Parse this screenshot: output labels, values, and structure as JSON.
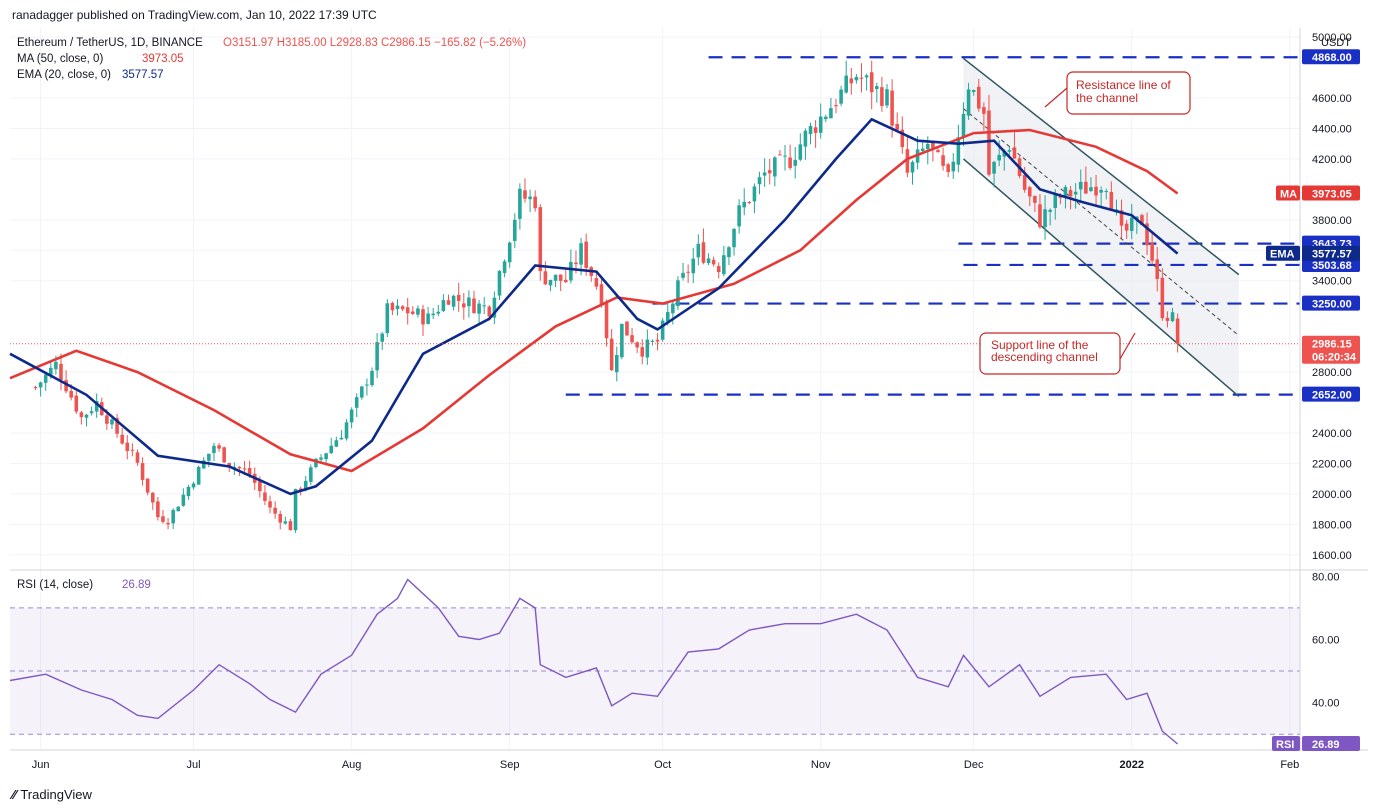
{
  "header": {
    "published": "ranadagger published on TradingView.com, Jan 10, 2022 17:39 UTC"
  },
  "legend": {
    "symbol": "Ethereum / TetherUS, 1D, BINANCE",
    "ohlc": "O3151.97  H3185.00  L2928.83  C2986.15  −165.82 (−5.26%)",
    "ma": "MA (50, close, 0)",
    "ma_value": "3973.05",
    "ema": "EMA (20, close, 0)",
    "ema_value": "3577.57",
    "rsi": "RSI (14, close)",
    "rsi_value": "26.89"
  },
  "colors": {
    "up": "#26a69a",
    "down": "#ef5350",
    "ma": "#e53935",
    "ema": "#0d2a8a",
    "rsi": "#7e57c2",
    "level": "#1a2fc4",
    "channel": "#2e5661",
    "annotation": "#c62828"
  },
  "annotations": {
    "resistance": [
      "Resistance line of",
      "the channel"
    ],
    "support": [
      "Support line of the",
      "descending channel"
    ]
  },
  "footer": {
    "brand": "TradingView"
  },
  "chart_data": {
    "type": "candlestick",
    "currency": "USDT",
    "x_ticks": [
      "Jun",
      "Jul",
      "Aug",
      "Sep",
      "Oct",
      "Nov",
      "Dec",
      "2022",
      "Feb"
    ],
    "x_tick_dates": [
      "2021-06-01",
      "2021-07-01",
      "2021-08-01",
      "2021-09-01",
      "2021-10-01",
      "2021-11-01",
      "2021-12-01",
      "2022-01-01",
      "2022-02-01"
    ],
    "y_ticks": [
      "1600.00",
      "1800.00",
      "2000.00",
      "2200.00",
      "2400.00",
      "2800.00",
      "3400.00",
      "3600.00",
      "3800.00",
      "4200.00",
      "4400.00",
      "4600.00",
      "5000.00"
    ],
    "ylim": [
      1500,
      5060
    ],
    "rsi_ticks": [
      "40.00",
      "60.00",
      "80.00"
    ],
    "rsi_range": [
      25,
      82
    ],
    "rsi_band": [
      30,
      70
    ],
    "horizontal_levels": [
      {
        "label": "4868.00",
        "value": 4868,
        "from": "2021-10-10"
      },
      {
        "label": "3643.73",
        "value": 3643.73,
        "from": "2021-11-28"
      },
      {
        "label": "3503.68",
        "value": 3503.68,
        "from": "2021-11-29"
      },
      {
        "label": "3250.00",
        "value": 3250,
        "from": "2021-09-29"
      },
      {
        "label": "2652.00",
        "value": 2652,
        "from": "2021-09-12"
      }
    ],
    "price_tags": [
      {
        "name": "MA",
        "label": "3973.05",
        "value": 3973.05
      },
      {
        "name": "EMA",
        "label": "3577.57",
        "value": 3577.57
      },
      {
        "name": "close",
        "label": "2986.15",
        "sub": "06:20:34",
        "value": 2986.15
      },
      {
        "name": "RSI",
        "label": "26.89",
        "value": 26.89
      }
    ],
    "channel": {
      "resistance": [
        [
          "2021-11-29",
          4860
        ],
        [
          "2022-01-22",
          3440
        ]
      ],
      "support": [
        [
          "2021-11-29",
          4200
        ],
        [
          "2022-01-22",
          2640
        ]
      ],
      "midline": [
        [
          "2021-11-29",
          4530
        ],
        [
          "2022-01-22",
          3040
        ]
      ]
    },
    "anchors": [
      [
        "2021-05-31",
        2700
      ],
      [
        "2021-06-04",
        2850
      ],
      [
        "2021-06-09",
        2500
      ],
      [
        "2021-06-12",
        2600
      ],
      [
        "2021-06-16",
        2400
      ],
      [
        "2021-06-20",
        2200
      ],
      [
        "2021-06-24",
        1850
      ],
      [
        "2021-06-26",
        1830
      ],
      [
        "2021-07-01",
        2100
      ],
      [
        "2021-07-05",
        2320
      ],
      [
        "2021-07-08",
        2200
      ],
      [
        "2021-07-12",
        2130
      ],
      [
        "2021-07-16",
        1900
      ],
      [
        "2021-07-20",
        1780
      ],
      [
        "2021-07-21",
        2000
      ],
      [
        "2021-07-25",
        2200
      ],
      [
        "2021-07-30",
        2400
      ],
      [
        "2021-08-02",
        2600
      ],
      [
        "2021-08-05",
        2830
      ],
      [
        "2021-08-08",
        3200
      ],
      [
        "2021-08-12",
        3200
      ],
      [
        "2021-08-16",
        3150
      ],
      [
        "2021-08-20",
        3300
      ],
      [
        "2021-08-24",
        3250
      ],
      [
        "2021-08-28",
        3220
      ],
      [
        "2021-09-01",
        3700
      ],
      [
        "2021-09-03",
        3950
      ],
      [
        "2021-09-06",
        3930
      ],
      [
        "2021-09-07",
        3430
      ],
      [
        "2021-09-12",
        3400
      ],
      [
        "2021-09-15",
        3600
      ],
      [
        "2021-09-19",
        3300
      ],
      [
        "2021-09-21",
        2800
      ],
      [
        "2021-09-23",
        3100
      ],
      [
        "2021-09-27",
        2950
      ],
      [
        "2021-09-30",
        3000
      ],
      [
        "2021-10-04",
        3350
      ],
      [
        "2021-10-08",
        3600
      ],
      [
        "2021-10-12",
        3500
      ],
      [
        "2021-10-16",
        3850
      ],
      [
        "2021-10-21",
        4100
      ],
      [
        "2021-10-26",
        4200
      ],
      [
        "2021-10-29",
        4350
      ],
      [
        "2021-11-03",
        4550
      ],
      [
        "2021-11-08",
        4750
      ],
      [
        "2021-11-10",
        4700
      ],
      [
        "2021-11-14",
        4600
      ],
      [
        "2021-11-18",
        4100
      ],
      [
        "2021-11-22",
        4300
      ],
      [
        "2021-11-26",
        4050
      ],
      [
        "2021-11-30",
        4700
      ],
      [
        "2021-12-03",
        4500
      ],
      [
        "2021-12-04",
        4100
      ],
      [
        "2021-12-08",
        4300
      ],
      [
        "2021-12-11",
        4000
      ],
      [
        "2021-12-14",
        3800
      ],
      [
        "2021-12-18",
        3950
      ],
      [
        "2021-12-22",
        4000
      ],
      [
        "2021-12-27",
        4050
      ],
      [
        "2021-12-30",
        3700
      ],
      [
        "2022-01-03",
        3800
      ],
      [
        "2022-01-05",
        3550
      ],
      [
        "2022-01-07",
        3200
      ],
      [
        "2022-01-09",
        3150
      ],
      [
        "2022-01-10",
        2986
      ]
    ],
    "ema20_anchors": [
      [
        "2021-05-26",
        2920
      ],
      [
        "2021-06-10",
        2650
      ],
      [
        "2021-06-24",
        2250
      ],
      [
        "2021-07-08",
        2180
      ],
      [
        "2021-07-20",
        2000
      ],
      [
        "2021-07-25",
        2050
      ],
      [
        "2021-08-05",
        2350
      ],
      [
        "2021-08-15",
        2920
      ],
      [
        "2021-08-28",
        3150
      ],
      [
        "2021-09-06",
        3500
      ],
      [
        "2021-09-18",
        3460
      ],
      [
        "2021-09-26",
        3150
      ],
      [
        "2021-09-30",
        3080
      ],
      [
        "2021-10-12",
        3350
      ],
      [
        "2021-10-25",
        3800
      ],
      [
        "2021-11-04",
        4200
      ],
      [
        "2021-11-11",
        4460
      ],
      [
        "2021-11-20",
        4320
      ],
      [
        "2021-11-28",
        4300
      ],
      [
        "2021-12-05",
        4320
      ],
      [
        "2021-12-14",
        4000
      ],
      [
        "2021-12-22",
        3920
      ],
      [
        "2022-01-01",
        3830
      ],
      [
        "2022-01-10",
        3578
      ]
    ],
    "ma50_anchors": [
      [
        "2021-05-26",
        2760
      ],
      [
        "2021-06-08",
        2940
      ],
      [
        "2021-06-20",
        2800
      ],
      [
        "2021-07-05",
        2550
      ],
      [
        "2021-07-20",
        2260
      ],
      [
        "2021-08-01",
        2150
      ],
      [
        "2021-08-15",
        2430
      ],
      [
        "2021-08-28",
        2780
      ],
      [
        "2021-09-10",
        3100
      ],
      [
        "2021-09-22",
        3290
      ],
      [
        "2021-10-01",
        3250
      ],
      [
        "2021-10-15",
        3380
      ],
      [
        "2021-10-28",
        3600
      ],
      [
        "2021-11-08",
        3930
      ],
      [
        "2021-11-18",
        4200
      ],
      [
        "2021-12-01",
        4370
      ],
      [
        "2021-12-12",
        4390
      ],
      [
        "2021-12-25",
        4280
      ],
      [
        "2022-01-04",
        4120
      ],
      [
        "2022-01-10",
        3973
      ]
    ],
    "rsi_anchors": [
      [
        "2021-05-26",
        47
      ],
      [
        "2021-06-02",
        49
      ],
      [
        "2021-06-09",
        44
      ],
      [
        "2021-06-15",
        41
      ],
      [
        "2021-06-20",
        36
      ],
      [
        "2021-06-24",
        35
      ],
      [
        "2021-07-01",
        44
      ],
      [
        "2021-07-06",
        52
      ],
      [
        "2021-07-12",
        46
      ],
      [
        "2021-07-16",
        41
      ],
      [
        "2021-07-21",
        37
      ],
      [
        "2021-07-26",
        49
      ],
      [
        "2021-08-01",
        55
      ],
      [
        "2021-08-06",
        68
      ],
      [
        "2021-08-10",
        73
      ],
      [
        "2021-08-12",
        79
      ],
      [
        "2021-08-18",
        70
      ],
      [
        "2021-08-22",
        61
      ],
      [
        "2021-08-26",
        60
      ],
      [
        "2021-08-30",
        62
      ],
      [
        "2021-09-03",
        73
      ],
      [
        "2021-09-06",
        70
      ],
      [
        "2021-09-07",
        52
      ],
      [
        "2021-09-12",
        48
      ],
      [
        "2021-09-18",
        51
      ],
      [
        "2021-09-21",
        39
      ],
      [
        "2021-09-25",
        43
      ],
      [
        "2021-09-30",
        42
      ],
      [
        "2021-10-06",
        56
      ],
      [
        "2021-10-12",
        57
      ],
      [
        "2021-10-18",
        63
      ],
      [
        "2021-10-25",
        65
      ],
      [
        "2021-11-01",
        65
      ],
      [
        "2021-11-08",
        68
      ],
      [
        "2021-11-14",
        63
      ],
      [
        "2021-11-20",
        48
      ],
      [
        "2021-11-26",
        45
      ],
      [
        "2021-11-29",
        55
      ],
      [
        "2021-12-04",
        45
      ],
      [
        "2021-12-10",
        52
      ],
      [
        "2021-12-14",
        42
      ],
      [
        "2021-12-20",
        48
      ],
      [
        "2021-12-27",
        49
      ],
      [
        "2021-12-31",
        41
      ],
      [
        "2022-01-04",
        43
      ],
      [
        "2022-01-07",
        31
      ],
      [
        "2022-01-10",
        26.89
      ]
    ]
  }
}
